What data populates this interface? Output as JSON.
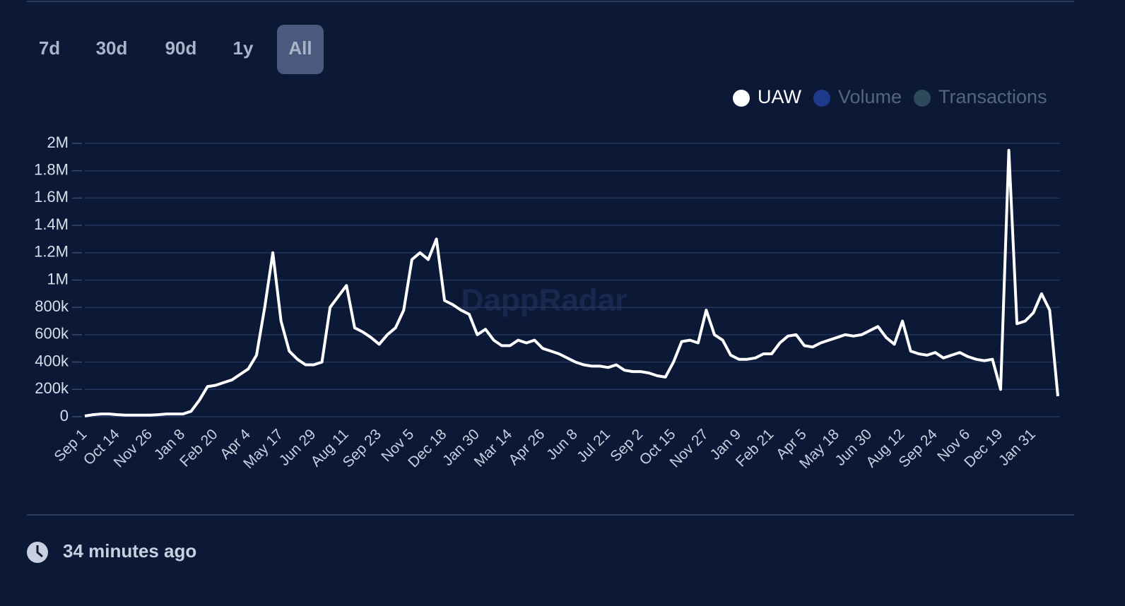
{
  "range_buttons": [
    "7d",
    "30d",
    "90d",
    "1y",
    "All"
  ],
  "active_button": 4,
  "updated": "34 minutes ago",
  "chart_data": {
    "type": "line",
    "watermark": "DappRadar",
    "categories": [
      "Sep 1",
      null,
      null,
      null,
      "Oct 14",
      null,
      null,
      null,
      "Nov 26",
      null,
      null,
      null,
      "Jan 8",
      null,
      null,
      null,
      "Feb 20",
      null,
      null,
      null,
      "Apr 4",
      null,
      null,
      null,
      "May 17",
      null,
      null,
      null,
      "Jun 29",
      null,
      null,
      null,
      "Aug 11",
      null,
      null,
      null,
      "Sep 23",
      null,
      null,
      null,
      "Nov 5",
      null,
      null,
      null,
      "Dec 18",
      null,
      null,
      null,
      "Jan 30",
      null,
      null,
      null,
      "Mar 14",
      null,
      null,
      null,
      "Apr 26",
      null,
      null,
      null,
      "Jun 8",
      null,
      null,
      null,
      "Jul 21",
      null,
      null,
      null,
      "Sep 2",
      null,
      null,
      null,
      "Oct 15",
      null,
      null,
      null,
      "Nov 27",
      null,
      null,
      null,
      "Jan 9",
      null,
      null,
      null,
      "Feb 21",
      null,
      null,
      null,
      "Apr 5",
      null,
      null,
      null,
      "May 18",
      null,
      null,
      null,
      "Jun 30",
      null,
      null,
      null,
      "Aug 12",
      null,
      null,
      null,
      "Sep 24",
      null,
      null,
      null,
      "Nov 6",
      null,
      null,
      null,
      "Dec 19",
      null,
      null,
      null,
      "Jan 31",
      null,
      null,
      null
    ],
    "series": [
      {
        "name": "UAW",
        "color": "#ffffff",
        "values": [
          5000,
          15000,
          20000,
          20000,
          15000,
          12000,
          12000,
          12000,
          12000,
          15000,
          20000,
          20000,
          20000,
          40000,
          120000,
          220000,
          230000,
          250000,
          270000,
          310000,
          350000,
          450000,
          800000,
          1200000,
          700000,
          480000,
          420000,
          380000,
          380000,
          400000,
          800000,
          880000,
          960000,
          650000,
          620000,
          580000,
          530000,
          600000,
          650000,
          780000,
          1150000,
          1200000,
          1150000,
          1300000,
          850000,
          820000,
          780000,
          750000,
          600000,
          640000,
          560000,
          520000,
          520000,
          560000,
          540000,
          560000,
          500000,
          480000,
          460000,
          430000,
          400000,
          380000,
          370000,
          370000,
          360000,
          380000,
          340000,
          330000,
          330000,
          320000,
          300000,
          290000,
          400000,
          550000,
          560000,
          540000,
          780000,
          600000,
          560000,
          450000,
          420000,
          420000,
          430000,
          460000,
          460000,
          540000,
          590000,
          600000,
          520000,
          510000,
          540000,
          560000,
          580000,
          600000,
          590000,
          600000,
          630000,
          660000,
          580000,
          530000,
          700000,
          480000,
          460000,
          450000,
          470000,
          430000,
          450000,
          470000,
          440000,
          420000,
          410000,
          420000,
          200000,
          1950000,
          680000,
          700000,
          760000,
          900000,
          780000,
          150000
        ]
      }
    ],
    "inactive_series": [
      {
        "name": "Volume",
        "color": "#1e3a8a"
      },
      {
        "name": "Transactions",
        "color": "#2c4a5c"
      }
    ],
    "ylim": [
      0,
      2000000
    ],
    "yticks": [
      0,
      {
        "value": 200000,
        "label": "200k"
      },
      {
        "value": 400000,
        "label": "400k"
      },
      {
        "value": 600000,
        "label": "600k"
      },
      {
        "value": 800000,
        "label": "800k"
      },
      {
        "value": 1000000,
        "label": "1M"
      },
      {
        "value": 1200000,
        "label": "1.2M"
      },
      {
        "value": 1400000,
        "label": "1.4M"
      },
      {
        "value": 1600000,
        "label": "1.6M"
      },
      {
        "value": 1800000,
        "label": "1.8M"
      },
      {
        "value": 2000000,
        "label": "2M"
      }
    ],
    "grid": true
  }
}
